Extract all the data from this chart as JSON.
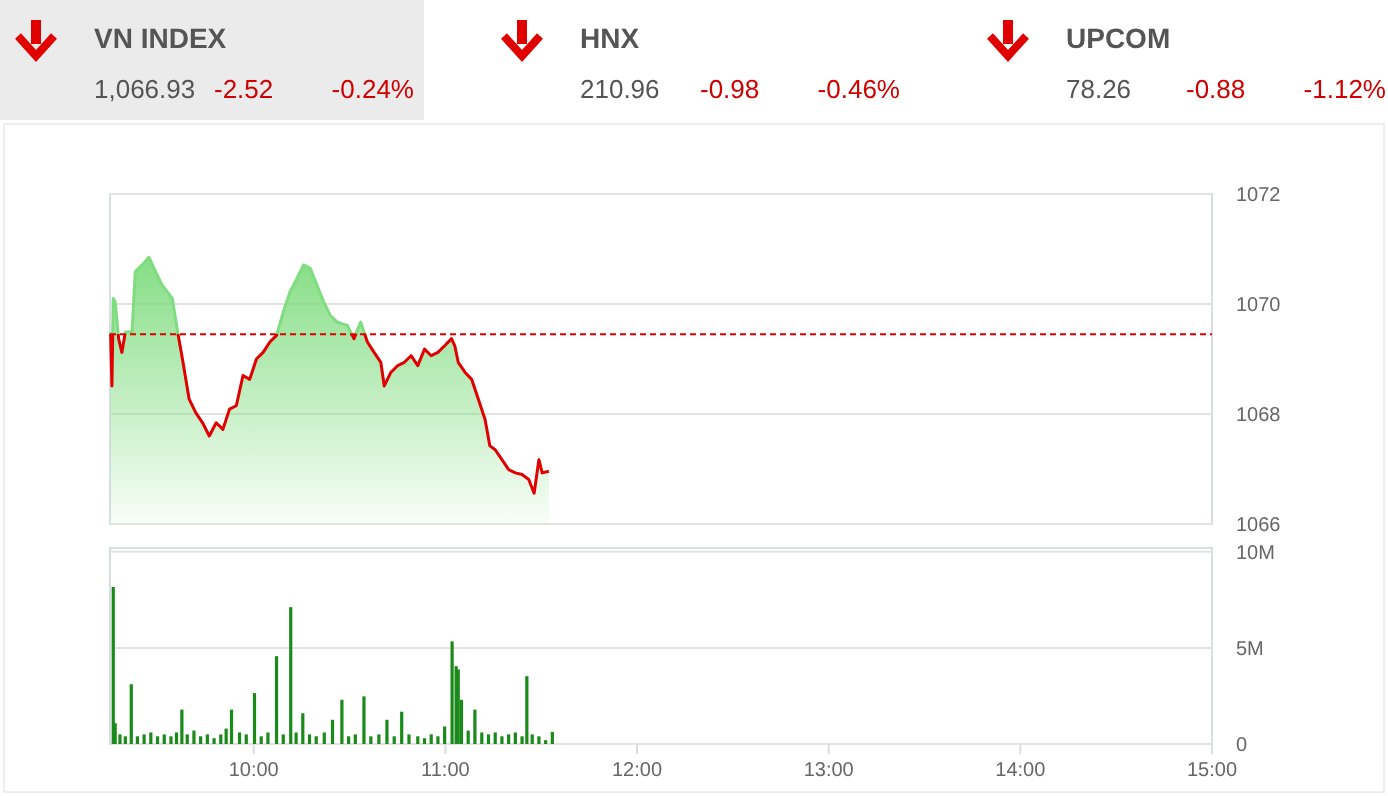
{
  "chart_data": [
    {
      "type": "other",
      "annotations": [
        "VN INDEX",
        "1,066.93",
        "-2.52",
        "-0.24%",
        "HNX",
        "210.96",
        "-0.98",
        "-0.46%",
        "UPCOM",
        "78.26",
        "-0.88",
        "-1.12%"
      ]
    },
    {
      "type": "area",
      "xlim": [
        9.25,
        15
      ],
      "ylim": [
        1066,
        1072
      ],
      "yticks": [
        1066,
        1068,
        1070,
        1072
      ],
      "grid": "y",
      "tick_labels": "y",
      "ref_lines": [
        {
          "axis": "y",
          "value": 1069.45,
          "color": "#e00000",
          "line_style": "dashed"
        }
      ],
      "series": [
        {
          "color": "#7fdc7f",
          "x": [
            9.253,
            9.26,
            9.267,
            9.277,
            9.295,
            9.312,
            9.33,
            9.365,
            9.382,
            9.418,
            9.453,
            9.488,
            9.523,
            9.575,
            9.603,
            9.628,
            9.663,
            9.698,
            9.733,
            9.768,
            9.804,
            9.839,
            9.874,
            9.909,
            9.944,
            9.979,
            10.014,
            10.049,
            10.084,
            10.119,
            10.154,
            10.189,
            10.225,
            10.26,
            10.295,
            10.33,
            10.365,
            10.4,
            10.435,
            10.488,
            10.523,
            10.558,
            10.593,
            10.628,
            10.663,
            10.681,
            10.716,
            10.751,
            10.786,
            10.821,
            10.856,
            10.891,
            10.926,
            10.961,
            10.996,
            11.032,
            11.049,
            11.067,
            11.102,
            11.137,
            11.172,
            11.207,
            11.232,
            11.26,
            11.295,
            11.33,
            11.365,
            11.4,
            11.435,
            11.463,
            11.488,
            11.505,
            11.54
          ],
          "values": [
            1069.49,
            1068.51,
            1070.1,
            1070.04,
            1069.37,
            1069.12,
            1069.49,
            1069.49,
            1070.59,
            1070.71,
            1070.85,
            1070.59,
            1070.34,
            1070.1,
            1069.49,
            1069.0,
            1068.27,
            1068.02,
            1067.84,
            1067.6,
            1067.84,
            1067.72,
            1068.09,
            1068.15,
            1068.7,
            1068.63,
            1069.0,
            1069.12,
            1069.31,
            1069.43,
            1069.85,
            1070.22,
            1070.46,
            1070.71,
            1070.65,
            1070.34,
            1070.04,
            1069.79,
            1069.67,
            1069.61,
            1069.37,
            1069.67,
            1069.31,
            1069.12,
            1068.94,
            1068.51,
            1068.76,
            1068.88,
            1068.94,
            1069.06,
            1068.88,
            1069.18,
            1069.06,
            1069.12,
            1069.24,
            1069.37,
            1069.24,
            1068.94,
            1068.76,
            1068.63,
            1068.27,
            1067.9,
            1067.42,
            1067.35,
            1067.17,
            1066.99,
            1066.93,
            1066.9,
            1066.81,
            1066.56,
            1067.17,
            1066.93,
            1066.96
          ]
        }
      ]
    },
    {
      "type": "bar",
      "xlim": [
        9.25,
        15
      ],
      "xticks": [
        {
          "value": 10,
          "label": "10:00"
        },
        {
          "value": 11,
          "label": "11:00"
        },
        {
          "value": 12,
          "label": "12:00"
        },
        {
          "value": 13,
          "label": "13:00"
        },
        {
          "value": 14,
          "label": "14:00"
        },
        {
          "value": 15,
          "label": "15:00"
        }
      ],
      "ylim": [
        0,
        10.2
      ],
      "yticks": [
        {
          "value": 0,
          "label": "0"
        },
        {
          "value": 5,
          "label": "5M"
        },
        {
          "value": 10,
          "label": "10M"
        }
      ],
      "grid": "y",
      "series": [
        {
          "color": "#1a8a1a",
          "x": [
            9.267,
            9.277,
            9.302,
            9.33,
            9.361,
            9.393,
            9.428,
            9.463,
            9.498,
            9.533,
            9.568,
            9.597,
            9.625,
            9.653,
            9.688,
            9.723,
            9.758,
            9.793,
            9.828,
            9.856,
            9.884,
            9.926,
            9.961,
            10.004,
            10.039,
            10.074,
            10.119,
            10.154,
            10.193,
            10.221,
            10.256,
            10.291,
            10.326,
            10.368,
            10.411,
            10.46,
            10.495,
            10.53,
            10.575,
            10.611,
            10.653,
            10.695,
            10.733,
            10.772,
            10.81,
            10.856,
            10.891,
            10.926,
            10.961,
            10.996,
            11.035,
            11.056,
            11.067,
            11.084,
            11.119,
            11.154,
            11.19,
            11.225,
            11.26,
            11.295,
            11.33,
            11.365,
            11.4,
            11.425,
            11.453,
            11.488,
            11.523,
            11.558
          ],
          "values": [
            8.17,
            1.08,
            0.5,
            0.4,
            3.11,
            0.4,
            0.5,
            0.6,
            0.4,
            0.5,
            0.4,
            0.6,
            1.79,
            0.5,
            0.7,
            0.4,
            0.5,
            0.3,
            0.5,
            0.8,
            1.79,
            0.6,
            0.5,
            2.65,
            0.4,
            0.6,
            4.57,
            0.5,
            7.12,
            0.6,
            1.6,
            0.5,
            0.4,
            0.6,
            1.26,
            2.3,
            0.4,
            0.5,
            2.48,
            0.4,
            0.5,
            1.26,
            0.4,
            1.68,
            0.5,
            0.4,
            0.3,
            0.5,
            0.4,
            0.91,
            5.34,
            4.05,
            3.88,
            2.3,
            0.7,
            1.79,
            0.6,
            0.5,
            0.6,
            0.4,
            0.5,
            0.6,
            0.4,
            3.53,
            0.5,
            0.4,
            0.2,
            0.63
          ]
        }
      ]
    }
  ]
}
